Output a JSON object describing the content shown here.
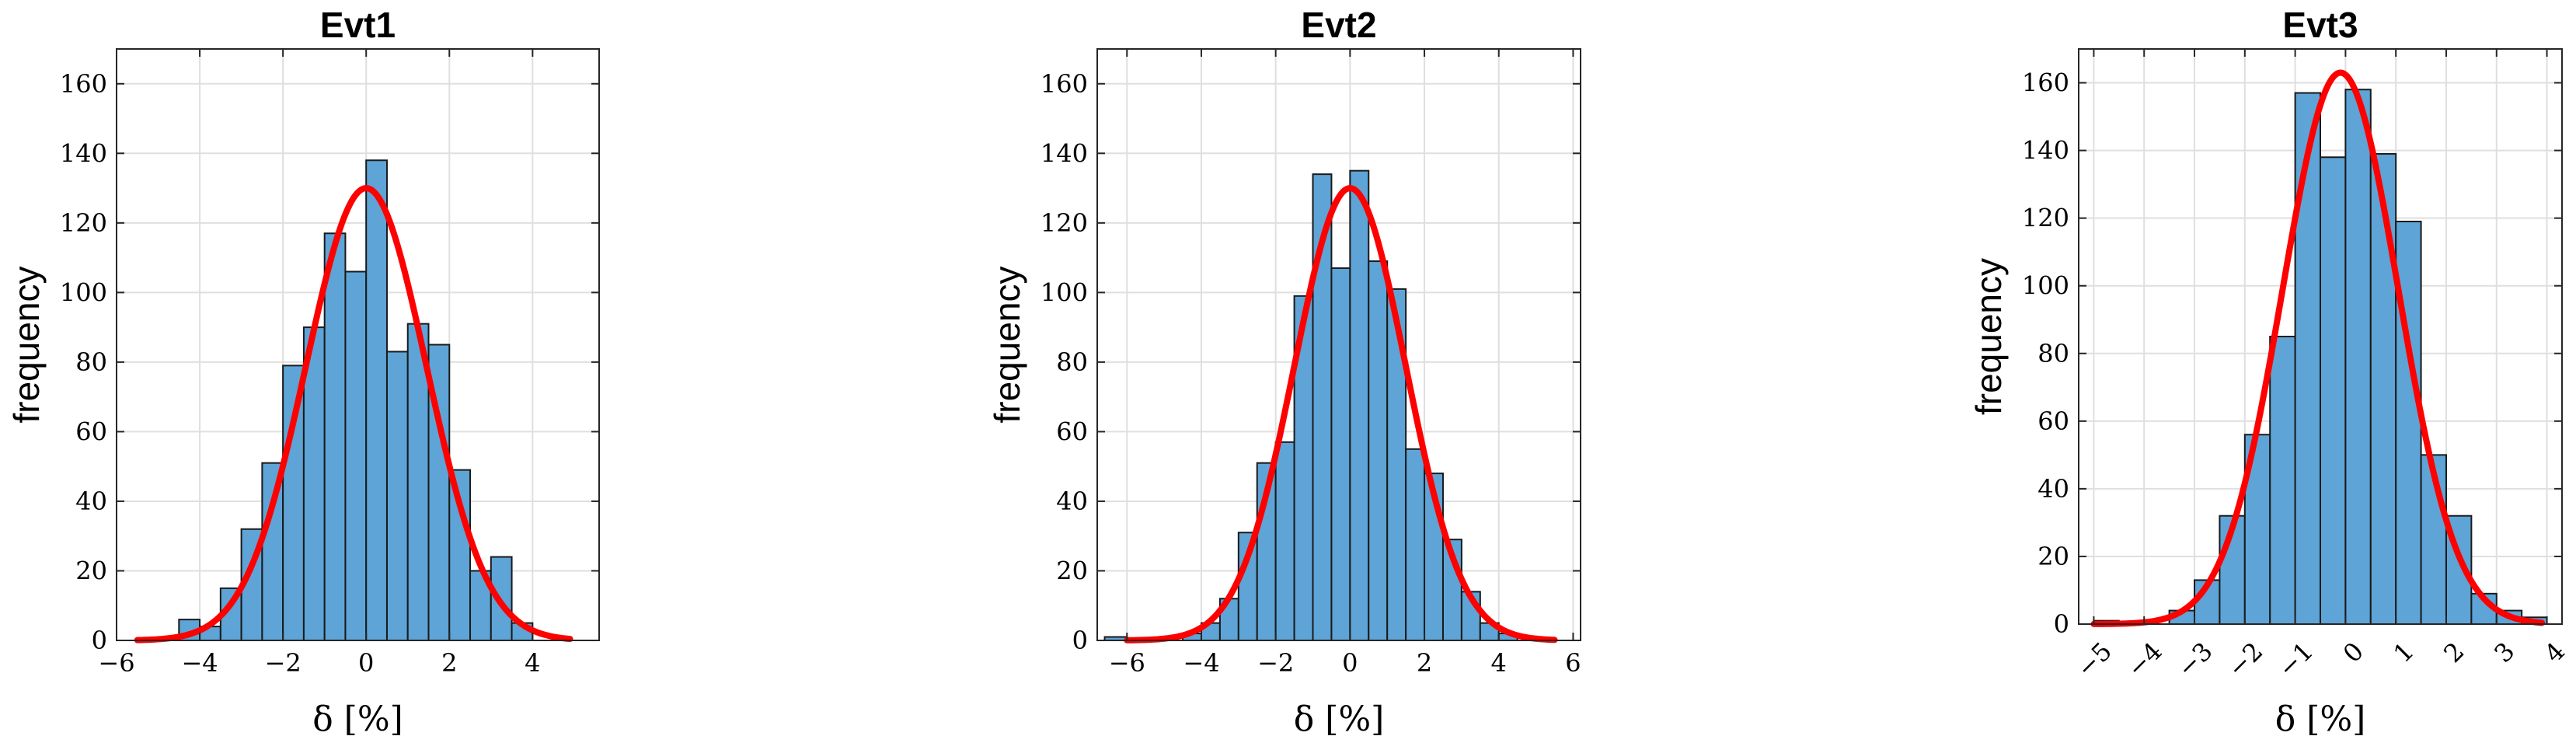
{
  "colors": {
    "bar_fill": "#5ea4d6",
    "bar_edge": "#1a1a1a",
    "fit_line": "#ff0000"
  },
  "chart_data": [
    {
      "type": "bar",
      "title": "Evt1",
      "xlabel": "δ [%]",
      "ylabel": "frequency",
      "xlim": [
        -6,
        5.6
      ],
      "ylim": [
        0,
        170
      ],
      "xticks": [
        -6,
        -4,
        -2,
        0,
        2,
        4
      ],
      "yticks": [
        0,
        20,
        40,
        60,
        80,
        100,
        120,
        140,
        160
      ],
      "tick_rotation": 0,
      "grid": true,
      "bin_edges": [
        -4.5,
        -4.0,
        -3.5,
        -3.0,
        -2.5,
        -2.0,
        -1.5,
        -1.0,
        -0.5,
        0.0,
        0.5,
        1.0,
        1.5,
        2.0,
        2.5,
        3.0,
        3.5,
        4.0
      ],
      "counts": [
        6,
        4,
        15,
        32,
        51,
        79,
        90,
        117,
        106,
        138,
        83,
        91,
        85,
        49,
        20,
        24,
        5
      ],
      "fit": {
        "type": "normal",
        "peak": 130,
        "mean": 0.0,
        "sigma": 1.45,
        "x_range": [
          -5.5,
          4.9
        ]
      }
    },
    {
      "type": "bar",
      "title": "Evt2",
      "xlabel": "δ [%]",
      "ylabel": "frequency",
      "xlim": [
        -6.8,
        6.2
      ],
      "ylim": [
        0,
        170
      ],
      "xticks": [
        -6,
        -4,
        -2,
        0,
        2,
        4,
        6
      ],
      "yticks": [
        0,
        20,
        40,
        60,
        80,
        100,
        120,
        140,
        160
      ],
      "tick_rotation": 0,
      "grid": true,
      "bin_edges": [
        -6.6,
        -6.0,
        -5.5,
        -5.0,
        -4.5,
        -4.0,
        -3.5,
        -3.0,
        -2.5,
        -2.0,
        -1.5,
        -1.0,
        -0.5,
        0.0,
        0.5,
        1.0,
        1.5,
        2.0,
        2.5,
        3.0,
        3.5,
        4.0,
        4.5
      ],
      "counts": [
        1,
        0,
        0,
        0,
        2,
        5,
        12,
        31,
        51,
        57,
        99,
        134,
        107,
        135,
        109,
        101,
        55,
        48,
        29,
        14,
        5,
        2
      ],
      "fit": {
        "type": "normal",
        "peak": 130,
        "mean": 0.0,
        "sigma": 1.5,
        "x_range": [
          -6.0,
          5.5
        ]
      }
    },
    {
      "type": "bar",
      "title": "Evt3",
      "xlabel": "δ [%]",
      "ylabel": "frequency",
      "xlim": [
        -5.3,
        4.3
      ],
      "ylim": [
        0,
        170
      ],
      "xticks": [
        -5,
        -4,
        -3,
        -2,
        -1,
        0,
        1,
        2,
        3,
        4
      ],
      "yticks": [
        0,
        20,
        40,
        60,
        80,
        100,
        120,
        140,
        160
      ],
      "tick_rotation": -45,
      "grid": true,
      "bin_edges": [
        -5.0,
        -4.5,
        -4.0,
        -3.5,
        -3.0,
        -2.5,
        -2.0,
        -1.5,
        -1.0,
        -0.5,
        0.0,
        0.5,
        1.0,
        1.5,
        2.0,
        2.5,
        3.0,
        3.5,
        4.0
      ],
      "counts": [
        1,
        0,
        0,
        4,
        13,
        32,
        56,
        85,
        157,
        138,
        158,
        139,
        119,
        50,
        32,
        9,
        4,
        2
      ],
      "fit": {
        "type": "normal",
        "peak": 163,
        "mean": -0.1,
        "sigma": 1.15,
        "x_range": [
          -5.0,
          3.9
        ]
      }
    }
  ]
}
